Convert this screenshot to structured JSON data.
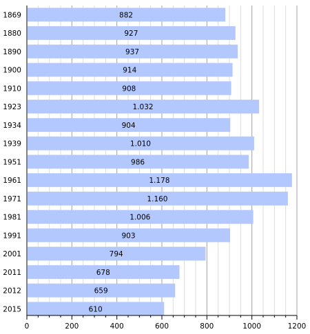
{
  "chart_data": {
    "type": "bar",
    "orientation": "horizontal",
    "categories": [
      "1869",
      "1880",
      "1890",
      "1900",
      "1910",
      "1923",
      "1934",
      "1939",
      "1951",
      "1961",
      "1971",
      "1981",
      "1991",
      "2001",
      "2011",
      "2012",
      "2015"
    ],
    "values": [
      882,
      927,
      937,
      914,
      908,
      1032,
      904,
      1010,
      986,
      1178,
      1160,
      1006,
      903,
      794,
      678,
      659,
      610
    ],
    "value_labels": [
      "882",
      "927",
      "937",
      "914",
      "908",
      "1.032",
      "904",
      "1.010",
      "986",
      "1.178",
      "1.160",
      "1.006",
      "903",
      "794",
      "678",
      "659",
      "610"
    ],
    "x_ticks": [
      0,
      200,
      400,
      600,
      800,
      1000,
      1200
    ],
    "x_tick_labels": [
      "0",
      "200",
      "400",
      "600",
      "800",
      "1000",
      "1200"
    ],
    "xlim": [
      0,
      1200
    ],
    "title": "",
    "xlabel": "",
    "ylabel": "",
    "grid": true,
    "legend": "none",
    "colors": {
      "bar": "#b3c8ff",
      "grid_major": "#a0a0a0",
      "grid_minor": "#dddddd",
      "axis": "#000000"
    }
  }
}
